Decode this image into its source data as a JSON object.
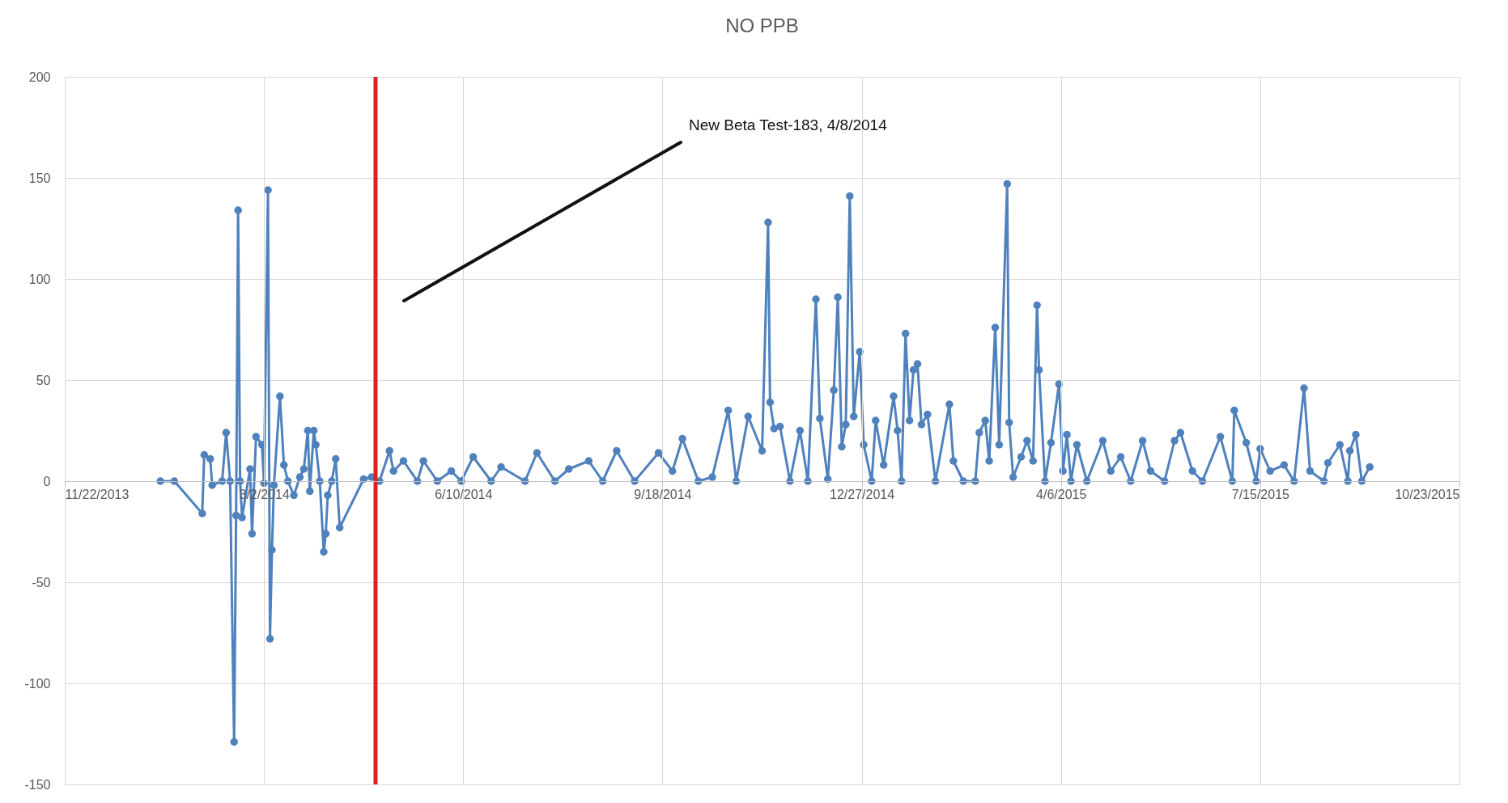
{
  "chart_data": {
    "type": "line",
    "title": "NO PPB",
    "marker": "circle",
    "line_style": "solid",
    "grid": true,
    "xlim": [
      "2013-11-22",
      "2015-10-23"
    ],
    "xticks": [
      {
        "value": "2013-11-22",
        "label": "11/22/2013"
      },
      {
        "value": "2014-03-02",
        "label": "3/2/2014"
      },
      {
        "value": "2014-06-10",
        "label": "6/10/2014"
      },
      {
        "value": "2014-09-18",
        "label": "9/18/2014"
      },
      {
        "value": "2014-12-27",
        "label": "12/27/2014"
      },
      {
        "value": "2015-04-06",
        "label": "4/6/2015"
      },
      {
        "value": "2015-07-15",
        "label": "7/15/2015"
      },
      {
        "value": "2015-10-23",
        "label": "10/23/2015"
      }
    ],
    "ylim": [
      -150,
      200
    ],
    "yticks": [
      -150,
      -100,
      -50,
      0,
      50,
      100,
      150,
      200
    ],
    "ref_lines": [
      {
        "axis": "x",
        "value": "2014-04-27",
        "color": "#e02020"
      }
    ],
    "annotations": [
      "New Beta Test-183, 4/8/2014"
    ],
    "series": [
      {
        "color": "#4f81bd",
        "x": [
          "2014-01-09",
          "2014-01-16",
          "2014-01-30",
          "2014-01-31",
          "2014-02-03",
          "2014-02-04",
          "2014-02-09",
          "2014-02-11",
          "2014-02-13",
          "2014-02-15",
          "2014-02-16",
          "2014-02-17",
          "2014-02-18",
          "2014-02-19",
          "2014-02-23",
          "2014-02-24",
          "2014-02-26",
          "2014-03-01",
          "2014-03-02",
          "2014-03-04",
          "2014-03-05",
          "2014-03-06",
          "2014-03-07",
          "2014-03-10",
          "2014-03-12",
          "2014-03-14",
          "2014-03-17",
          "2014-03-20",
          "2014-03-22",
          "2014-03-24",
          "2014-03-25",
          "2014-03-27",
          "2014-03-28",
          "2014-03-30",
          "2014-04-01",
          "2014-04-02",
          "2014-04-03",
          "2014-04-05",
          "2014-04-07",
          "2014-04-09",
          "2014-04-21",
          "2014-04-25",
          "2014-04-29",
          "2014-05-04",
          "2014-05-06",
          "2014-05-11",
          "2014-05-18",
          "2014-05-21",
          "2014-05-28",
          "2014-06-04",
          "2014-06-09",
          "2014-06-15",
          "2014-06-24",
          "2014-06-29",
          "2014-07-11",
          "2014-07-17",
          "2014-07-26",
          "2014-08-02",
          "2014-08-12",
          "2014-08-19",
          "2014-08-26",
          "2014-09-04",
          "2014-09-16",
          "2014-09-23",
          "2014-09-28",
          "2014-10-06",
          "2014-10-13",
          "2014-10-21",
          "2014-10-25",
          "2014-10-31",
          "2014-11-07",
          "2014-11-10",
          "2014-11-11",
          "2014-11-13",
          "2014-11-16",
          "2014-11-21",
          "2014-11-26",
          "2014-11-30",
          "2014-12-04",
          "2014-12-06",
          "2014-12-10",
          "2014-12-13",
          "2014-12-15",
          "2014-12-17",
          "2014-12-19",
          "2014-12-21",
          "2014-12-23",
          "2014-12-26",
          "2014-12-28",
          "2015-01-01",
          "2015-01-03",
          "2015-01-07",
          "2015-01-12",
          "2015-01-14",
          "2015-01-16",
          "2015-01-18",
          "2015-01-20",
          "2015-01-22",
          "2015-01-24",
          "2015-01-26",
          "2015-01-29",
          "2015-02-02",
          "2015-02-09",
          "2015-02-11",
          "2015-02-16",
          "2015-02-22",
          "2015-02-24",
          "2015-02-27",
          "2015-03-01",
          "2015-03-04",
          "2015-03-06",
          "2015-03-10",
          "2015-03-11",
          "2015-03-13",
          "2015-03-17",
          "2015-03-20",
          "2015-03-23",
          "2015-03-25",
          "2015-03-26",
          "2015-03-29",
          "2015-04-01",
          "2015-04-05",
          "2015-04-07",
          "2015-04-09",
          "2015-04-11",
          "2015-04-14",
          "2015-04-19",
          "2015-04-27",
          "2015-05-01",
          "2015-05-06",
          "2015-05-11",
          "2015-05-17",
          "2015-05-21",
          "2015-05-28",
          "2015-06-02",
          "2015-06-05",
          "2015-06-11",
          "2015-06-16",
          "2015-06-25",
          "2015-07-01",
          "2015-07-02",
          "2015-07-08",
          "2015-07-13",
          "2015-07-15",
          "2015-07-20",
          "2015-07-27",
          "2015-08-01",
          "2015-08-06",
          "2015-08-09",
          "2015-08-16",
          "2015-08-18",
          "2015-08-24",
          "2015-08-28",
          "2015-08-29",
          "2015-09-01",
          "2015-09-04",
          "2015-09-08"
        ],
        "values": [
          0,
          0,
          -16,
          13,
          11,
          -2,
          0,
          24,
          0,
          -129,
          -17,
          134,
          0,
          -18,
          6,
          -26,
          22,
          18,
          -1,
          144,
          -78,
          -34,
          -2,
          42,
          8,
          0,
          -7,
          2,
          6,
          25,
          -5,
          25,
          18,
          0,
          -35,
          -26,
          -7,
          0,
          11,
          -23,
          1,
          2,
          0,
          15,
          5,
          10,
          0,
          10,
          0,
          5,
          0,
          12,
          0,
          7,
          0,
          14,
          0,
          6,
          10,
          0,
          15,
          0,
          14,
          5,
          21,
          0,
          2,
          35,
          0,
          32,
          15,
          128,
          39,
          26,
          27,
          0,
          25,
          0,
          90,
          31,
          1,
          45,
          91,
          17,
          28,
          141,
          32,
          64,
          18,
          0,
          30,
          8,
          42,
          25,
          0,
          73,
          30,
          55,
          58,
          28,
          33,
          0,
          38,
          10,
          0,
          0,
          24,
          30,
          10,
          76,
          18,
          147,
          29,
          2,
          12,
          20,
          10,
          87,
          55,
          0,
          19,
          48,
          5,
          23,
          0,
          18,
          0,
          20,
          5,
          12,
          0,
          20,
          5,
          0,
          20,
          24,
          5,
          0,
          22,
          0,
          35,
          19,
          0,
          16,
          5,
          8,
          0,
          46,
          5,
          0,
          9,
          18,
          0,
          15,
          23,
          0,
          7
        ]
      }
    ]
  }
}
